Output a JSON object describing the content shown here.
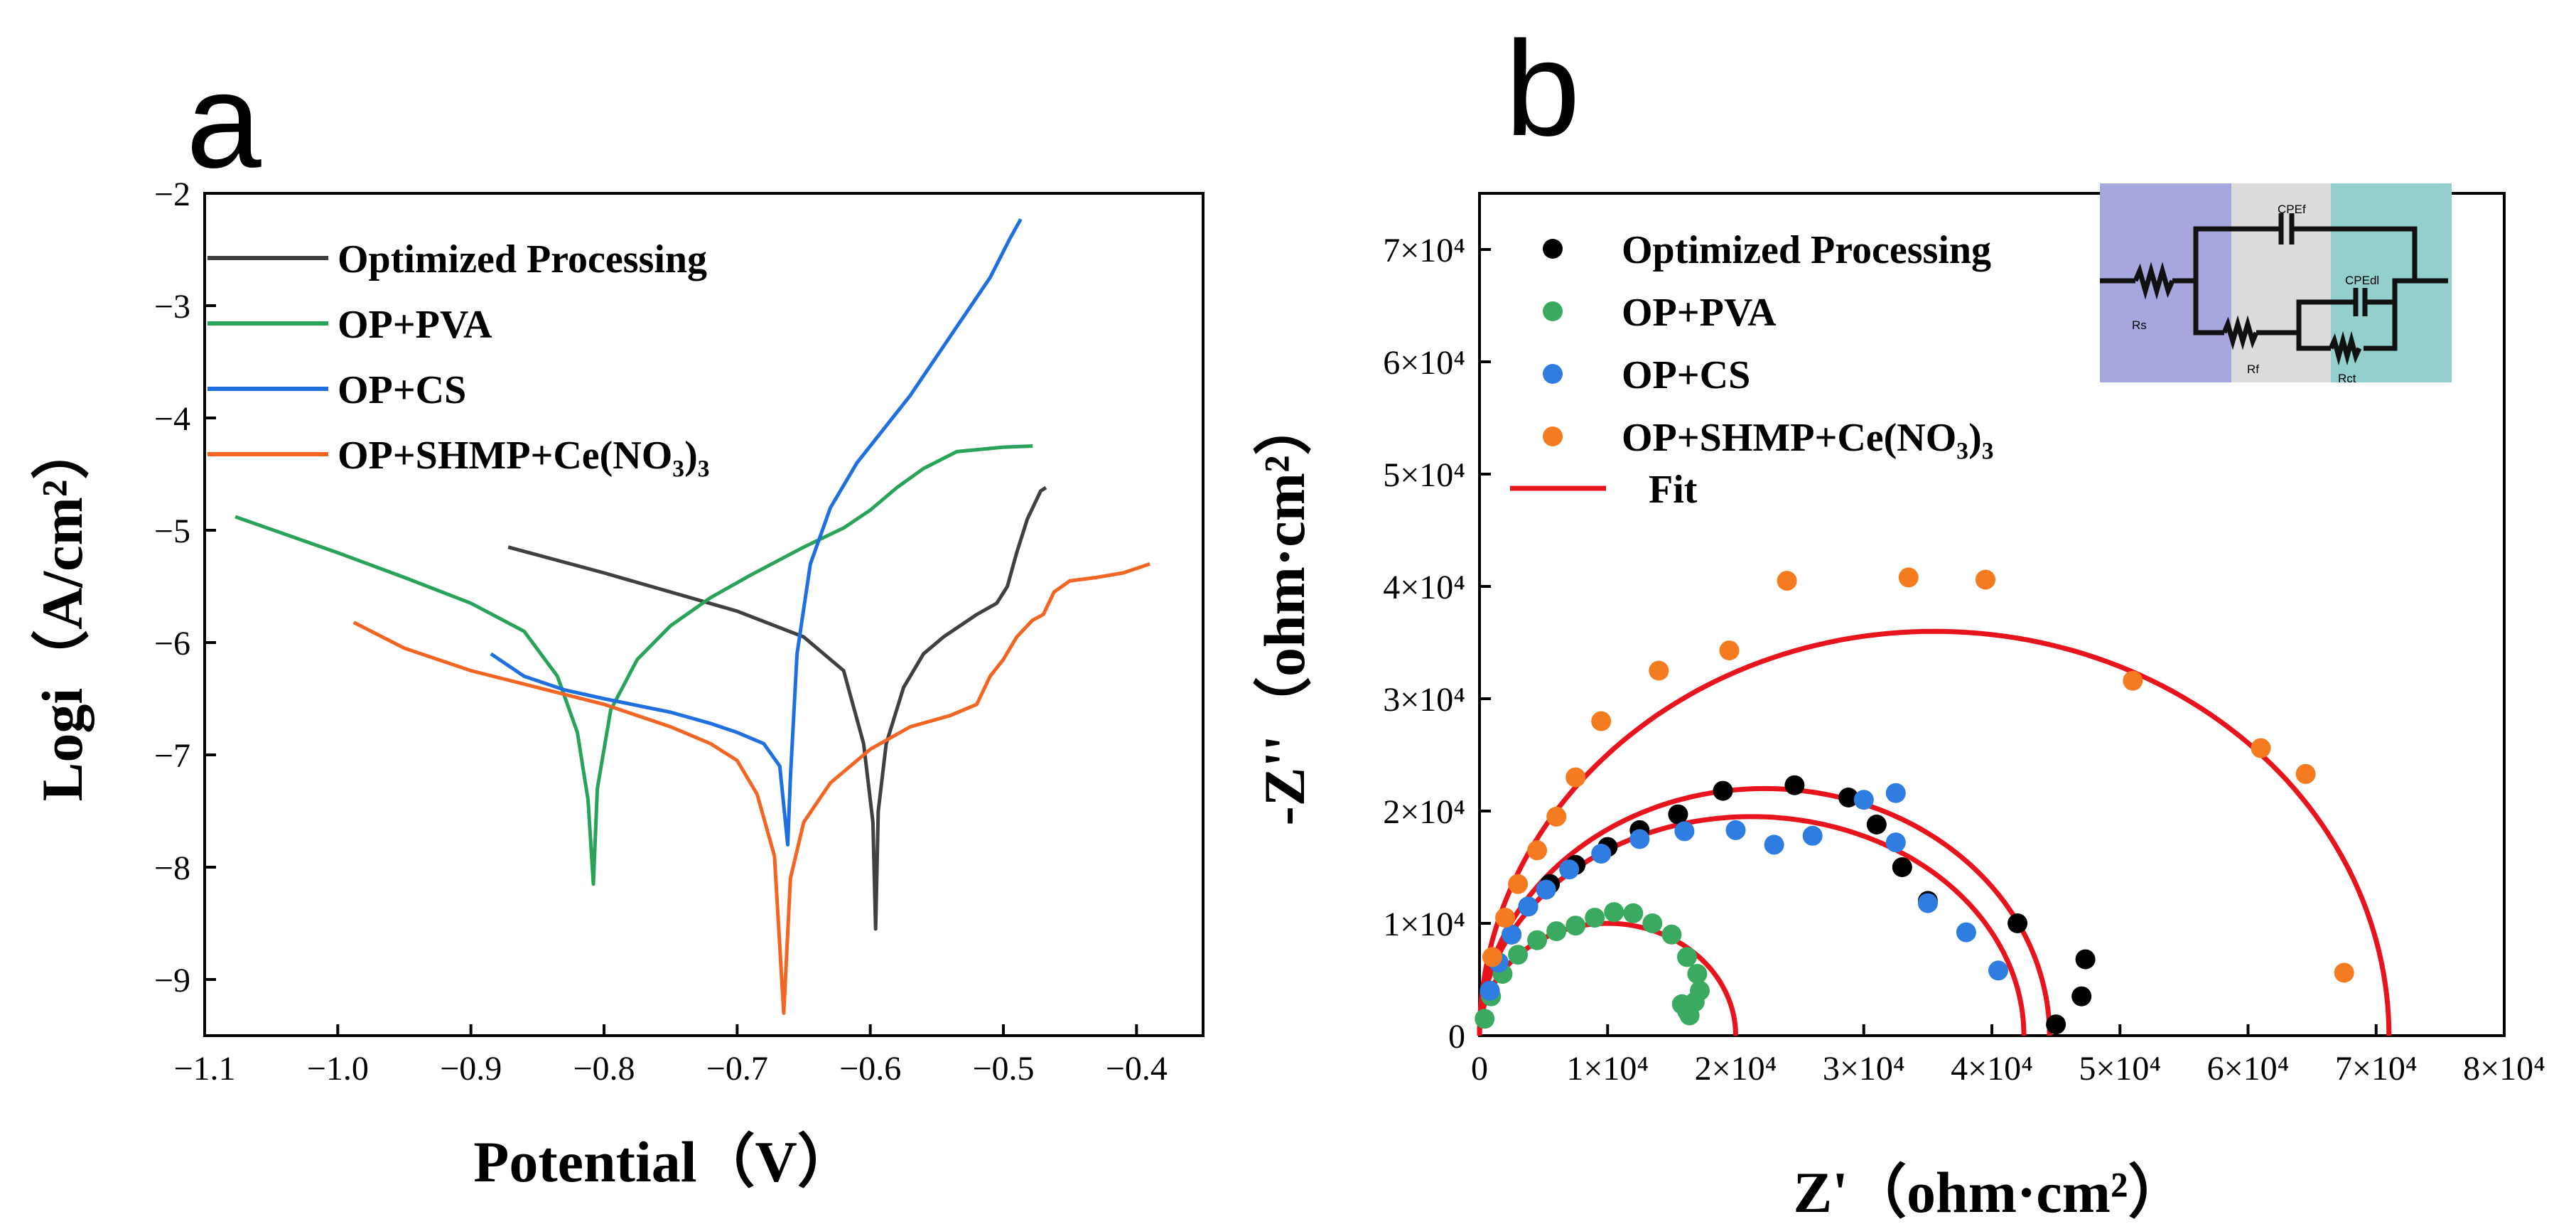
{
  "figure": {
    "panel_a": "a",
    "panel_b": "b"
  },
  "chart_data": [
    {
      "type": "line",
      "panel": "a",
      "title": "",
      "xlabel": "Potential（V）",
      "ylabel": "Logi（A/cm²）",
      "xlim": [
        -1.1,
        -0.35
      ],
      "ylim": [
        -9.5,
        -2
      ],
      "xticks": [
        -1.1,
        -1.0,
        -0.9,
        -0.8,
        -0.7,
        -0.6,
        -0.5,
        -0.4
      ],
      "xtick_labels": [
        "−1.1",
        "−1.0",
        "−0.9",
        "−0.8",
        "−0.7",
        "−0.6",
        "−0.5",
        "−0.4"
      ],
      "yticks": [
        -9,
        -8,
        -7,
        -6,
        -5,
        -4,
        -3,
        -2
      ],
      "ytick_labels": [
        "−9",
        "−8",
        "−7",
        "−6",
        "−5",
        "−4",
        "−3",
        "−2"
      ],
      "legend_position": "top-left",
      "series": [
        {
          "name": "Optimized Processing",
          "color": "#404040",
          "points": [
            [
              -0.872,
              -5.15
            ],
            [
              -0.8,
              -5.38
            ],
            [
              -0.75,
              -5.55
            ],
            [
              -0.7,
              -5.72
            ],
            [
              -0.65,
              -5.95
            ],
            [
              -0.62,
              -6.25
            ],
            [
              -0.605,
              -6.9
            ],
            [
              -0.598,
              -7.6
            ],
            [
              -0.596,
              -8.55
            ],
            [
              -0.594,
              -7.5
            ],
            [
              -0.588,
              -6.9
            ],
            [
              -0.575,
              -6.4
            ],
            [
              -0.56,
              -6.1
            ],
            [
              -0.545,
              -5.95
            ],
            [
              -0.52,
              -5.75
            ],
            [
              -0.505,
              -5.65
            ],
            [
              -0.497,
              -5.5
            ],
            [
              -0.49,
              -5.2
            ],
            [
              -0.482,
              -4.9
            ],
            [
              -0.472,
              -4.65
            ],
            [
              -0.468,
              -4.62
            ]
          ]
        },
        {
          "name": "OP+PVA",
          "color": "#2aa35a",
          "points": [
            [
              -1.077,
              -4.88
            ],
            [
              -1.0,
              -5.2
            ],
            [
              -0.95,
              -5.42
            ],
            [
              -0.9,
              -5.65
            ],
            [
              -0.86,
              -5.9
            ],
            [
              -0.835,
              -6.3
            ],
            [
              -0.82,
              -6.8
            ],
            [
              -0.812,
              -7.4
            ],
            [
              -0.808,
              -8.15
            ],
            [
              -0.805,
              -7.3
            ],
            [
              -0.795,
              -6.6
            ],
            [
              -0.775,
              -6.15
            ],
            [
              -0.75,
              -5.85
            ],
            [
              -0.72,
              -5.6
            ],
            [
              -0.69,
              -5.4
            ],
            [
              -0.65,
              -5.15
            ],
            [
              -0.62,
              -4.98
            ],
            [
              -0.6,
              -4.82
            ],
            [
              -0.58,
              -4.62
            ],
            [
              -0.56,
              -4.45
            ],
            [
              -0.535,
              -4.3
            ],
            [
              -0.5,
              -4.26
            ],
            [
              -0.478,
              -4.25
            ]
          ]
        },
        {
          "name": "OP+CS",
          "color": "#1f6fe0",
          "points": [
            [
              -0.885,
              -6.1
            ],
            [
              -0.86,
              -6.3
            ],
            [
              -0.83,
              -6.42
            ],
            [
              -0.8,
              -6.5
            ],
            [
              -0.75,
              -6.62
            ],
            [
              -0.72,
              -6.72
            ],
            [
              -0.7,
              -6.8
            ],
            [
              -0.68,
              -6.9
            ],
            [
              -0.668,
              -7.1
            ],
            [
              -0.662,
              -7.8
            ],
            [
              -0.66,
              -7.2
            ],
            [
              -0.655,
              -6.1
            ],
            [
              -0.645,
              -5.3
            ],
            [
              -0.63,
              -4.8
            ],
            [
              -0.61,
              -4.4
            ],
            [
              -0.59,
              -4.1
            ],
            [
              -0.57,
              -3.8
            ],
            [
              -0.55,
              -3.45
            ],
            [
              -0.53,
              -3.1
            ],
            [
              -0.51,
              -2.75
            ],
            [
              -0.495,
              -2.4
            ],
            [
              -0.487,
              -2.23
            ]
          ]
        },
        {
          "name": "OP+SHMP+Ce(NO₃)₃",
          "color": "#f26522",
          "points": [
            [
              -0.988,
              -5.82
            ],
            [
              -0.95,
              -6.05
            ],
            [
              -0.9,
              -6.25
            ],
            [
              -0.85,
              -6.4
            ],
            [
              -0.8,
              -6.55
            ],
            [
              -0.75,
              -6.75
            ],
            [
              -0.72,
              -6.9
            ],
            [
              -0.7,
              -7.05
            ],
            [
              -0.685,
              -7.35
            ],
            [
              -0.672,
              -7.9
            ],
            [
              -0.665,
              -9.3
            ],
            [
              -0.66,
              -8.1
            ],
            [
              -0.65,
              -7.6
            ],
            [
              -0.63,
              -7.25
            ],
            [
              -0.6,
              -6.95
            ],
            [
              -0.57,
              -6.75
            ],
            [
              -0.54,
              -6.65
            ],
            [
              -0.52,
              -6.55
            ],
            [
              -0.51,
              -6.3
            ],
            [
              -0.5,
              -6.15
            ],
            [
              -0.49,
              -5.95
            ],
            [
              -0.478,
              -5.8
            ],
            [
              -0.47,
              -5.75
            ],
            [
              -0.462,
              -5.55
            ],
            [
              -0.45,
              -5.45
            ],
            [
              -0.43,
              -5.42
            ],
            [
              -0.41,
              -5.38
            ],
            [
              -0.39,
              -5.3
            ]
          ]
        }
      ]
    },
    {
      "type": "scatter",
      "panel": "b",
      "title": "",
      "xlabel": "Z'（ohm·cm²）",
      "ylabel": "-Z''（ohm·cm²）",
      "xlim": [
        0,
        80000
      ],
      "ylim": [
        0,
        75000
      ],
      "xticks": [
        0,
        10000,
        20000,
        30000,
        40000,
        50000,
        60000,
        70000,
        80000
      ],
      "xtick_labels": [
        "0",
        "1×10⁴",
        "2×10⁴",
        "3×10⁴",
        "4×10⁴",
        "5×10⁴",
        "6×10⁴",
        "7×10⁴",
        "8×10⁴"
      ],
      "yticks": [
        0,
        10000,
        20000,
        30000,
        40000,
        50000,
        60000,
        70000
      ],
      "ytick_labels": [
        "0",
        "1×10⁴",
        "2×10⁴",
        "3×10⁴",
        "4×10⁴",
        "5×10⁴",
        "6×10⁴",
        "7×10⁴"
      ],
      "legend_position": "top-left",
      "fit_label": "Fit",
      "fit_color": "#e8141d",
      "series": [
        {
          "name": "Optimized Processing",
          "color": "#000000",
          "points": [
            [
              800,
              4000
            ],
            [
              1500,
              6500
            ],
            [
              2500,
              9000
            ],
            [
              3800,
              11500
            ],
            [
              5500,
              13500
            ],
            [
              7500,
              15200
            ],
            [
              10000,
              16800
            ],
            [
              12500,
              18300
            ],
            [
              15500,
              19700
            ],
            [
              19000,
              21800
            ],
            [
              24600,
              22300
            ],
            [
              28800,
              21200
            ],
            [
              31000,
              18800
            ],
            [
              33000,
              15000
            ],
            [
              35000,
              12000
            ],
            [
              42000,
              10000
            ],
            [
              47300,
              6800
            ],
            [
              47000,
              3500
            ],
            [
              45000,
              1000
            ]
          ]
        },
        {
          "name": "OP+PVA",
          "color": "#3aaa60",
          "points": [
            [
              400,
              1500
            ],
            [
              900,
              3500
            ],
            [
              1800,
              5500
            ],
            [
              3000,
              7200
            ],
            [
              4500,
              8500
            ],
            [
              6000,
              9300
            ],
            [
              7500,
              9800
            ],
            [
              9000,
              10500
            ],
            [
              10500,
              11000
            ],
            [
              12000,
              10900
            ],
            [
              13500,
              10000
            ],
            [
              15000,
              9000
            ],
            [
              16200,
              7000
            ],
            [
              17000,
              5500
            ],
            [
              17200,
              4000
            ],
            [
              16800,
              3000
            ],
            [
              16200,
              2200
            ],
            [
              15800,
              2800
            ],
            [
              16400,
              1800
            ]
          ]
        },
        {
          "name": "OP+CS",
          "color": "#2f7de1",
          "points": [
            [
              800,
              4000
            ],
            [
              1500,
              6500
            ],
            [
              2500,
              9000
            ],
            [
              3800,
              11500
            ],
            [
              5200,
              13000
            ],
            [
              7000,
              14800
            ],
            [
              9500,
              16200
            ],
            [
              12500,
              17500
            ],
            [
              16000,
              18200
            ],
            [
              20000,
              18300
            ],
            [
              23000,
              17000
            ],
            [
              26000,
              17800
            ],
            [
              30000,
              21000
            ],
            [
              32500,
              21600
            ],
            [
              32500,
              17200
            ],
            [
              35000,
              11800
            ],
            [
              38000,
              9200
            ],
            [
              40500,
              5800
            ]
          ]
        },
        {
          "name": "OP+SHMP+Ce(NO₃)₃",
          "color": "#f47b20",
          "points": [
            [
              1000,
              7000
            ],
            [
              2000,
              10500
            ],
            [
              3000,
              13500
            ],
            [
              4500,
              16500
            ],
            [
              6000,
              19500
            ],
            [
              7500,
              23000
            ],
            [
              9500,
              28000
            ],
            [
              14000,
              32500
            ],
            [
              19500,
              34300
            ],
            [
              24000,
              40500
            ],
            [
              33500,
              40800
            ],
            [
              39500,
              40600
            ],
            [
              51000,
              31600
            ],
            [
              61000,
              25600
            ],
            [
              64500,
              23300
            ],
            [
              67500,
              5600
            ]
          ]
        }
      ],
      "fits": [
        {
          "name": "Fit OP+PVA",
          "x0": 0,
          "x1": 20000,
          "peak": 10000
        },
        {
          "name": "Fit OP+CS",
          "x0": 0,
          "x1": 42500,
          "peak": 19500
        },
        {
          "name": "Fit Optimized Processing",
          "x0": 0,
          "x1": 44500,
          "peak": 22000
        },
        {
          "name": "Fit OP+SHMP+Ce(NO₃)₃",
          "x0": 0,
          "x1": 71000,
          "peak": 36000
        }
      ],
      "inset": {
        "labels": [
          "Rₛ",
          "CPEᶠ",
          "Rᶠ",
          "CPEᵈᴸ",
          "Rᶜₜ"
        ],
        "label_text": {
          "rs": "Rs",
          "cpef": "CPEf",
          "rf": "Rf",
          "cpedl": "CPEdl",
          "rct": "Rct"
        },
        "colors": {
          "left": "#a7a7e0",
          "middle": "#dcdcdc",
          "right": "#93cfcc"
        }
      }
    }
  ]
}
